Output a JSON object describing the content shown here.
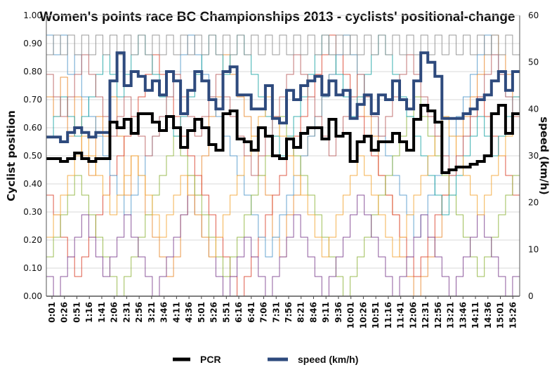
{
  "chart_data": {
    "type": "line",
    "title": "Women's points race BC Championships 2013 - cyclists' positional-change",
    "ylabel": "Cyclist position",
    "y2label": "speed (km/h)",
    "xlabel": "",
    "ylim": [
      0,
      1
    ],
    "y2lim": [
      0,
      60
    ],
    "yticks": [
      "0.00",
      "0.10",
      "0.20",
      "0.30",
      "0.40",
      "0.50",
      "0.60",
      "0.70",
      "0.80",
      "0.90",
      "1.00"
    ],
    "y2ticks": [
      "0",
      "10",
      "20",
      "30",
      "40",
      "50",
      "60"
    ],
    "x_time_labels": [
      "0:01",
      "0:26",
      "0:51",
      "1:16",
      "1:41",
      "2:06",
      "2:31",
      "2:56",
      "3:21",
      "3:46",
      "4:11",
      "4:36",
      "5:01",
      "5:26",
      "5:51",
      "6:16",
      "6:41",
      "7:06",
      "7:31",
      "7:56",
      "8:21",
      "8:46",
      "9:11",
      "9:36",
      "10:01",
      "10:26",
      "10:51",
      "11:16",
      "11:41",
      "12:06",
      "12:31",
      "12:56",
      "13:21",
      "13:46",
      "14:11",
      "14:36",
      "15:01",
      "15:26"
    ],
    "grid": true,
    "legend_position": "bottom",
    "series": [
      {
        "name": "PCR",
        "color": "#000000",
        "axis": "left",
        "values": [
          0.49,
          0.49,
          0.48,
          0.49,
          0.51,
          0.49,
          0.48,
          0.49,
          0.49,
          0.62,
          0.6,
          0.63,
          0.58,
          0.65,
          0.65,
          0.62,
          0.59,
          0.64,
          0.6,
          0.53,
          0.59,
          0.63,
          0.6,
          0.54,
          0.52,
          0.65,
          0.66,
          0.56,
          0.55,
          0.52,
          0.6,
          0.57,
          0.5,
          0.49,
          0.56,
          0.53,
          0.58,
          0.6,
          0.6,
          0.56,
          0.63,
          0.57,
          0.58,
          0.48,
          0.55,
          0.57,
          0.52,
          0.55,
          0.55,
          0.58,
          0.55,
          0.52,
          0.63,
          0.68,
          0.66,
          0.62,
          0.44,
          0.45,
          0.46,
          0.46,
          0.47,
          0.48,
          0.5,
          0.65,
          0.68,
          0.58,
          0.65
        ]
      },
      {
        "name": "speed (km/h)",
        "color": "#2E4A7D",
        "axis": "right",
        "values": [
          34,
          34,
          33,
          35,
          36,
          35,
          34,
          35,
          35,
          46,
          52,
          45,
          48,
          47,
          44,
          46,
          43,
          48,
          46,
          39,
          44,
          48,
          46,
          42,
          40,
          48,
          49,
          43,
          43,
          40,
          40,
          45,
          38,
          37,
          44,
          42,
          45,
          46,
          47,
          43,
          46,
          43,
          44,
          38,
          41,
          43,
          39,
          43,
          42,
          46,
          42,
          40,
          46,
          52,
          50,
          47,
          38,
          38,
          38,
          39,
          40,
          42,
          43,
          46,
          48,
          44,
          48
        ]
      },
      {
        "name": "",
        "color": "#E8862A",
        "axis": "left",
        "values": [
          0.71,
          0.64,
          0.78,
          0.57,
          0.71,
          0.5,
          0.43,
          0.64,
          0.57,
          0.71,
          0.57,
          0.36,
          0.5,
          0.43,
          0.29,
          0.21,
          0.14,
          0.07,
          0.14,
          0.29,
          0.43,
          0.36,
          0.5,
          0.64,
          0.71,
          0.86,
          0.79,
          0.71,
          0.64,
          0.57,
          0.43,
          0.36,
          0.21,
          0.14,
          0.29,
          0.36,
          0.5,
          0.57,
          0.64,
          0.71,
          0.79,
          0.86,
          0.93,
          0.86,
          0.71,
          0.64,
          0.57,
          0.43,
          0.36,
          0.29,
          0.14,
          0.07,
          0.0,
          0.07,
          0.14,
          0.21,
          0.36,
          0.43,
          0.57,
          0.64,
          0.71,
          0.79,
          0.86,
          0.93,
          0.86,
          0.79,
          0.71
        ]
      },
      {
        "name": "",
        "color": "#D9402A",
        "axis": "left",
        "values": [
          0.36,
          0.29,
          0.21,
          0.14,
          0.07,
          0.14,
          0.21,
          0.29,
          0.36,
          0.43,
          0.5,
          0.57,
          0.64,
          0.71,
          0.79,
          0.86,
          0.79,
          0.71,
          0.64,
          0.57,
          0.5,
          0.43,
          0.36,
          0.29,
          0.21,
          0.14,
          0.07,
          0.0,
          0.07,
          0.14,
          0.21,
          0.29,
          0.36,
          0.43,
          0.5,
          0.57,
          0.64,
          0.71,
          0.79,
          0.86,
          0.93,
          0.86,
          0.79,
          0.71,
          0.64,
          0.57,
          0.5,
          0.43,
          0.36,
          0.29,
          0.21,
          0.14,
          0.07,
          0.14,
          0.21,
          0.29,
          0.36,
          0.43,
          0.5,
          0.57,
          0.64,
          0.71,
          0.64,
          0.57,
          0.5,
          0.43,
          0.36
        ]
      },
      {
        "name": "",
        "color": "#4F97C9",
        "axis": "left",
        "values": [
          0.93,
          0.86,
          0.93,
          0.79,
          0.86,
          0.71,
          0.64,
          0.57,
          0.5,
          0.43,
          0.36,
          0.29,
          0.36,
          0.43,
          0.5,
          0.57,
          0.64,
          0.71,
          0.79,
          0.86,
          0.93,
          0.86,
          0.79,
          0.71,
          0.64,
          0.57,
          0.5,
          0.43,
          0.36,
          0.29,
          0.21,
          0.14,
          0.21,
          0.29,
          0.36,
          0.43,
          0.5,
          0.57,
          0.64,
          0.71,
          0.79,
          0.86,
          0.93,
          0.86,
          0.79,
          0.71,
          0.64,
          0.57,
          0.5,
          0.43,
          0.36,
          0.29,
          0.21,
          0.29,
          0.36,
          0.43,
          0.5,
          0.57,
          0.64,
          0.71,
          0.79,
          0.86,
          0.93,
          0.86,
          0.79,
          0.71,
          0.64
        ]
      },
      {
        "name": "",
        "color": "#8DB33A",
        "axis": "left",
        "values": [
          0.14,
          0.21,
          0.29,
          0.36,
          0.43,
          0.36,
          0.29,
          0.21,
          0.14,
          0.07,
          0.0,
          0.07,
          0.14,
          0.21,
          0.29,
          0.36,
          0.43,
          0.5,
          0.57,
          0.5,
          0.43,
          0.36,
          0.29,
          0.21,
          0.14,
          0.07,
          0.14,
          0.21,
          0.29,
          0.36,
          0.43,
          0.5,
          0.57,
          0.64,
          0.57,
          0.5,
          0.43,
          0.36,
          0.29,
          0.21,
          0.14,
          0.07,
          0.0,
          0.07,
          0.14,
          0.21,
          0.29,
          0.36,
          0.43,
          0.5,
          0.57,
          0.64,
          0.71,
          0.64,
          0.57,
          0.5,
          0.43,
          0.36,
          0.29,
          0.21,
          0.14,
          0.07,
          0.14,
          0.21,
          0.29,
          0.36,
          0.43
        ]
      },
      {
        "name": "",
        "color": "#7A3D8C",
        "axis": "left",
        "values": [
          0.07,
          0.0,
          0.07,
          0.14,
          0.21,
          0.29,
          0.21,
          0.14,
          0.07,
          0.14,
          0.21,
          0.29,
          0.21,
          0.14,
          0.07,
          0.0,
          0.07,
          0.14,
          0.21,
          0.29,
          0.36,
          0.29,
          0.21,
          0.14,
          0.07,
          0.0,
          0.07,
          0.14,
          0.21,
          0.14,
          0.07,
          0.0,
          0.07,
          0.14,
          0.21,
          0.29,
          0.21,
          0.14,
          0.07,
          0.0,
          0.07,
          0.14,
          0.21,
          0.29,
          0.36,
          0.29,
          0.21,
          0.14,
          0.07,
          0.0,
          0.07,
          0.14,
          0.21,
          0.29,
          0.21,
          0.14,
          0.07,
          0.0,
          0.07,
          0.14,
          0.21,
          0.29,
          0.21,
          0.14,
          0.07,
          0.0,
          0.07
        ]
      },
      {
        "name": "",
        "color": "#1AA3A3",
        "axis": "left",
        "values": [
          0.57,
          0.64,
          0.71,
          0.64,
          0.57,
          0.64,
          0.71,
          0.79,
          0.86,
          0.79,
          0.71,
          0.79,
          0.86,
          0.93,
          0.86,
          0.79,
          0.71,
          0.64,
          0.57,
          0.64,
          0.71,
          0.79,
          0.86,
          0.93,
          0.86,
          0.79,
          0.86,
          0.93,
          0.86,
          0.79,
          0.71,
          0.64,
          0.57,
          0.5,
          0.57,
          0.64,
          0.71,
          0.79,
          0.86,
          0.93,
          0.86,
          0.79,
          0.71,
          0.64,
          0.71,
          0.79,
          0.86,
          0.93,
          0.86,
          0.79,
          0.71,
          0.64,
          0.57,
          0.5,
          0.43,
          0.36,
          0.29,
          0.36,
          0.43,
          0.5,
          0.57,
          0.64,
          0.57,
          0.5,
          0.57,
          0.64,
          0.71
        ]
      },
      {
        "name": "",
        "color": "#F2A531",
        "axis": "left",
        "values": [
          0.21,
          0.29,
          0.36,
          0.43,
          0.5,
          0.57,
          0.5,
          0.43,
          0.36,
          0.29,
          0.36,
          0.43,
          0.5,
          0.43,
          0.36,
          0.29,
          0.21,
          0.29,
          0.36,
          0.43,
          0.36,
          0.29,
          0.21,
          0.14,
          0.21,
          0.29,
          0.36,
          0.43,
          0.5,
          0.57,
          0.64,
          0.71,
          0.64,
          0.57,
          0.5,
          0.43,
          0.36,
          0.29,
          0.21,
          0.14,
          0.21,
          0.29,
          0.36,
          0.43,
          0.5,
          0.43,
          0.36,
          0.29,
          0.21,
          0.14,
          0.21,
          0.29,
          0.36,
          0.43,
          0.5,
          0.57,
          0.64,
          0.57,
          0.5,
          0.43,
          0.36,
          0.29,
          0.36,
          0.43,
          0.5,
          0.57,
          0.64
        ]
      },
      {
        "name": "",
        "color": "#B85C5C",
        "axis": "left",
        "values": [
          0.79,
          0.71,
          0.64,
          0.71,
          0.79,
          0.86,
          0.79,
          0.71,
          0.64,
          0.57,
          0.64,
          0.71,
          0.64,
          0.57,
          0.5,
          0.57,
          0.64,
          0.71,
          0.79,
          0.71,
          0.64,
          0.57,
          0.64,
          0.71,
          0.79,
          0.71,
          0.64,
          0.57,
          0.5,
          0.43,
          0.5,
          0.57,
          0.64,
          0.71,
          0.79,
          0.86,
          0.79,
          0.71,
          0.64,
          0.57,
          0.5,
          0.57,
          0.64,
          0.71,
          0.79,
          0.71,
          0.64,
          0.57,
          0.64,
          0.71,
          0.79,
          0.86,
          0.79,
          0.71,
          0.64,
          0.57,
          0.5,
          0.43,
          0.5,
          0.57,
          0.64,
          0.71,
          0.79,
          0.86,
          0.79,
          0.71,
          0.64
        ]
      },
      {
        "name": "",
        "color": "#8A8A8A",
        "axis": "left",
        "values": [
          0.86,
          0.93,
          0.86,
          0.93,
          0.86,
          0.93,
          0.86,
          0.93,
          0.86,
          0.93,
          0.86,
          0.93,
          0.86,
          0.93,
          0.86,
          0.93,
          0.86,
          0.93,
          0.86,
          0.93,
          0.86,
          0.93,
          0.86,
          0.93,
          0.86,
          0.93,
          0.86,
          0.93,
          0.86,
          0.93,
          0.86,
          0.93,
          0.86,
          0.93,
          0.86,
          0.93,
          0.86,
          0.93,
          0.86,
          0.93,
          0.86,
          0.93,
          0.86,
          0.93,
          0.86,
          0.93,
          0.86,
          0.93,
          0.86,
          0.93,
          0.86,
          0.93,
          0.86,
          0.93,
          0.86,
          0.93,
          0.86,
          0.93,
          0.86,
          0.93,
          0.86,
          0.93,
          0.86,
          0.93,
          0.86,
          0.93,
          0.86
        ]
      }
    ]
  }
}
